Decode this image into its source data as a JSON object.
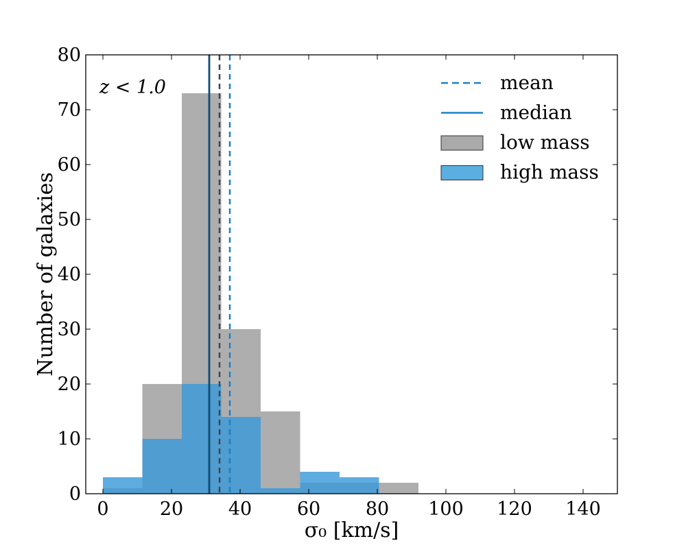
{
  "chart_data": {
    "type": "bar",
    "title": "",
    "xlabel": "σ₀ [km/s]",
    "ylabel": "Number of galaxies",
    "annotation": "z < 1.0",
    "xlim": [
      -5,
      150
    ],
    "ylim": [
      0,
      80
    ],
    "xticks": [
      0,
      20,
      40,
      60,
      80,
      100,
      120,
      140
    ],
    "yticks": [
      0,
      10,
      20,
      30,
      40,
      50,
      60,
      70,
      80
    ],
    "grid": false,
    "legend_position": "top-right",
    "bin_edges": [
      0,
      11.5,
      23,
      34.5,
      46,
      57.5,
      69,
      80.5,
      92
    ],
    "series": [
      {
        "name": "low mass",
        "color": "#aaaaaa",
        "values": [
          1,
          20,
          73,
          30,
          15,
          2,
          2,
          2
        ],
        "mean": 34,
        "median": 31,
        "mean_line_color": "#444444",
        "median_line_color": "#111111"
      },
      {
        "name": "high mass",
        "color": "#3a9ad9",
        "values": [
          3,
          10,
          20,
          14,
          1,
          4,
          3,
          0
        ],
        "mean": 37,
        "median": 31,
        "mean_line_color": "#1a80c8",
        "median_line_color": "#0b4f80"
      }
    ],
    "legend": [
      {
        "label": "mean",
        "style": "dashed-line",
        "color": "#1a80c8"
      },
      {
        "label": "median",
        "style": "solid-line",
        "color": "#1a80c8"
      },
      {
        "label": "low mass",
        "style": "patch",
        "color": "#aaaaaa"
      },
      {
        "label": "high mass",
        "style": "patch",
        "color": "#5aaee0"
      }
    ]
  }
}
